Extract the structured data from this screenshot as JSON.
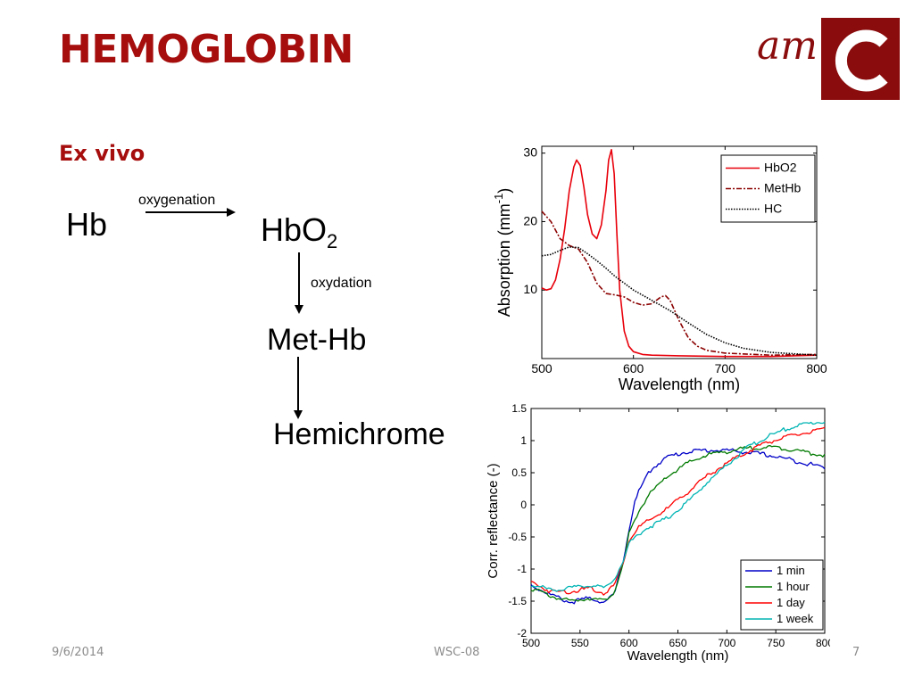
{
  "slide": {
    "title": "HEMOGLOBIN",
    "section": "Ex vivo"
  },
  "logo": {
    "text": "am",
    "bg_color": "#8b0c0c",
    "text_color": "#8b0c0c"
  },
  "reaction": {
    "start": "Hb",
    "step1_label": "oxygenation",
    "product1_base": "HbO",
    "product1_sub": "2",
    "step2_label": "oxydation",
    "product2": "Met-Hb",
    "product3": "Hemichrome"
  },
  "footer": {
    "date": "9/6/2014",
    "center": "WSC-08",
    "page": "7"
  },
  "chart_data": [
    {
      "type": "line",
      "xlabel": "Wavelength (nm)",
      "ylabel": "Absorption (mm",
      "ylabel_sup": "-1",
      "ylabel_close": ")",
      "xlim": [
        500,
        800
      ],
      "ylim": [
        0,
        31
      ],
      "xticks": [
        500,
        600,
        700,
        800
      ],
      "yticks": [
        10,
        20,
        30
      ],
      "legend": "top-right",
      "series": [
        {
          "name": "HbO2",
          "color": "#e8000b",
          "dash": "solid",
          "x": [
            500,
            505,
            510,
            515,
            520,
            525,
            530,
            535,
            538,
            542,
            546,
            550,
            555,
            560,
            565,
            570,
            573,
            576,
            579,
            582,
            585,
            590,
            595,
            600,
            610,
            620,
            650,
            700,
            750,
            800
          ],
          "y": [
            10.3,
            10.0,
            10.2,
            11.5,
            14.5,
            19,
            24.5,
            28,
            29,
            28.2,
            25,
            21,
            18.2,
            17.5,
            19.5,
            24.5,
            29,
            30.5,
            27,
            18,
            10,
            4,
            1.8,
            1.0,
            0.6,
            0.5,
            0.4,
            0.3,
            0.3,
            0.5
          ]
        },
        {
          "name": "MetHb",
          "color": "#8b0000",
          "dash": "6,2,2,2",
          "x": [
            500,
            510,
            520,
            530,
            540,
            550,
            560,
            570,
            580,
            590,
            600,
            610,
            620,
            630,
            635,
            640,
            650,
            660,
            670,
            680,
            700,
            750,
            800
          ],
          "y": [
            21.5,
            20,
            17.5,
            16.5,
            16,
            14,
            11,
            9.5,
            9.3,
            9.0,
            8.2,
            7.8,
            8.0,
            9.0,
            9.2,
            8.5,
            5.5,
            3.0,
            1.8,
            1.2,
            0.8,
            0.5,
            0.6
          ]
        },
        {
          "name": "HC",
          "color": "#000000",
          "dash": "1.5,1.5",
          "x": [
            500,
            510,
            520,
            530,
            540,
            550,
            560,
            570,
            580,
            590,
            600,
            620,
            640,
            660,
            680,
            700,
            720,
            750,
            800
          ],
          "y": [
            15,
            15.2,
            15.8,
            16.3,
            16.2,
            15.3,
            14.3,
            13.2,
            12.0,
            11.0,
            10.0,
            8.5,
            7.0,
            5.2,
            3.5,
            2.3,
            1.5,
            0.9,
            0.5
          ]
        }
      ]
    },
    {
      "type": "line",
      "xlabel": "Wavelength (nm)",
      "ylabel": "Corr. reflectance (-)",
      "xlim": [
        500,
        800
      ],
      "ylim": [
        -2,
        1.5
      ],
      "xticks": [
        500,
        550,
        600,
        650,
        700,
        750,
        800
      ],
      "yticks": [
        -2,
        -1.5,
        -1,
        -0.5,
        0,
        0.5,
        1,
        1.5
      ],
      "ytick_labels": [
        "-2",
        "-1.5",
        "-1",
        "-0.5",
        "0",
        "0.5",
        "1",
        "1.5"
      ],
      "legend": "bottom-right",
      "series": [
        {
          "name": "1 min",
          "color": "#0000c8",
          "x": [
            500,
            520,
            540,
            560,
            575,
            585,
            595,
            600,
            605,
            610,
            620,
            630,
            640,
            660,
            680,
            700,
            720,
            740,
            760,
            780,
            800
          ],
          "y": [
            -1.25,
            -1.4,
            -1.52,
            -1.45,
            -1.52,
            -1.4,
            -0.8,
            -0.4,
            0.0,
            0.2,
            0.5,
            0.65,
            0.75,
            0.83,
            0.85,
            0.85,
            0.82,
            0.78,
            0.72,
            0.65,
            0.58
          ]
        },
        {
          "name": "1 hour",
          "color": "#007a00",
          "x": [
            500,
            520,
            540,
            560,
            575,
            585,
            595,
            600,
            610,
            620,
            640,
            660,
            680,
            700,
            720,
            740,
            760,
            780,
            800
          ],
          "y": [
            -1.3,
            -1.42,
            -1.5,
            -1.45,
            -1.5,
            -1.35,
            -0.9,
            -0.45,
            -0.1,
            0.15,
            0.45,
            0.65,
            0.78,
            0.83,
            0.88,
            0.9,
            0.88,
            0.82,
            0.77
          ]
        },
        {
          "name": "1 day",
          "color": "#ff0000",
          "x": [
            500,
            520,
            540,
            560,
            575,
            585,
            595,
            600,
            610,
            620,
            640,
            660,
            680,
            700,
            720,
            740,
            760,
            780,
            800
          ],
          "y": [
            -1.2,
            -1.35,
            -1.35,
            -1.3,
            -1.38,
            -1.25,
            -0.85,
            -0.55,
            -0.35,
            -0.25,
            -0.05,
            0.2,
            0.45,
            0.65,
            0.82,
            0.97,
            1.05,
            1.12,
            1.17
          ]
        },
        {
          "name": "1 week",
          "color": "#00b4b4",
          "x": [
            500,
            520,
            540,
            560,
            575,
            585,
            595,
            600,
            610,
            620,
            640,
            660,
            680,
            700,
            720,
            740,
            760,
            780,
            800
          ],
          "y": [
            -1.25,
            -1.32,
            -1.3,
            -1.25,
            -1.3,
            -1.15,
            -0.85,
            -0.6,
            -0.45,
            -0.35,
            -0.2,
            0.05,
            0.35,
            0.62,
            0.88,
            1.05,
            1.18,
            1.26,
            1.3
          ]
        }
      ]
    }
  ]
}
